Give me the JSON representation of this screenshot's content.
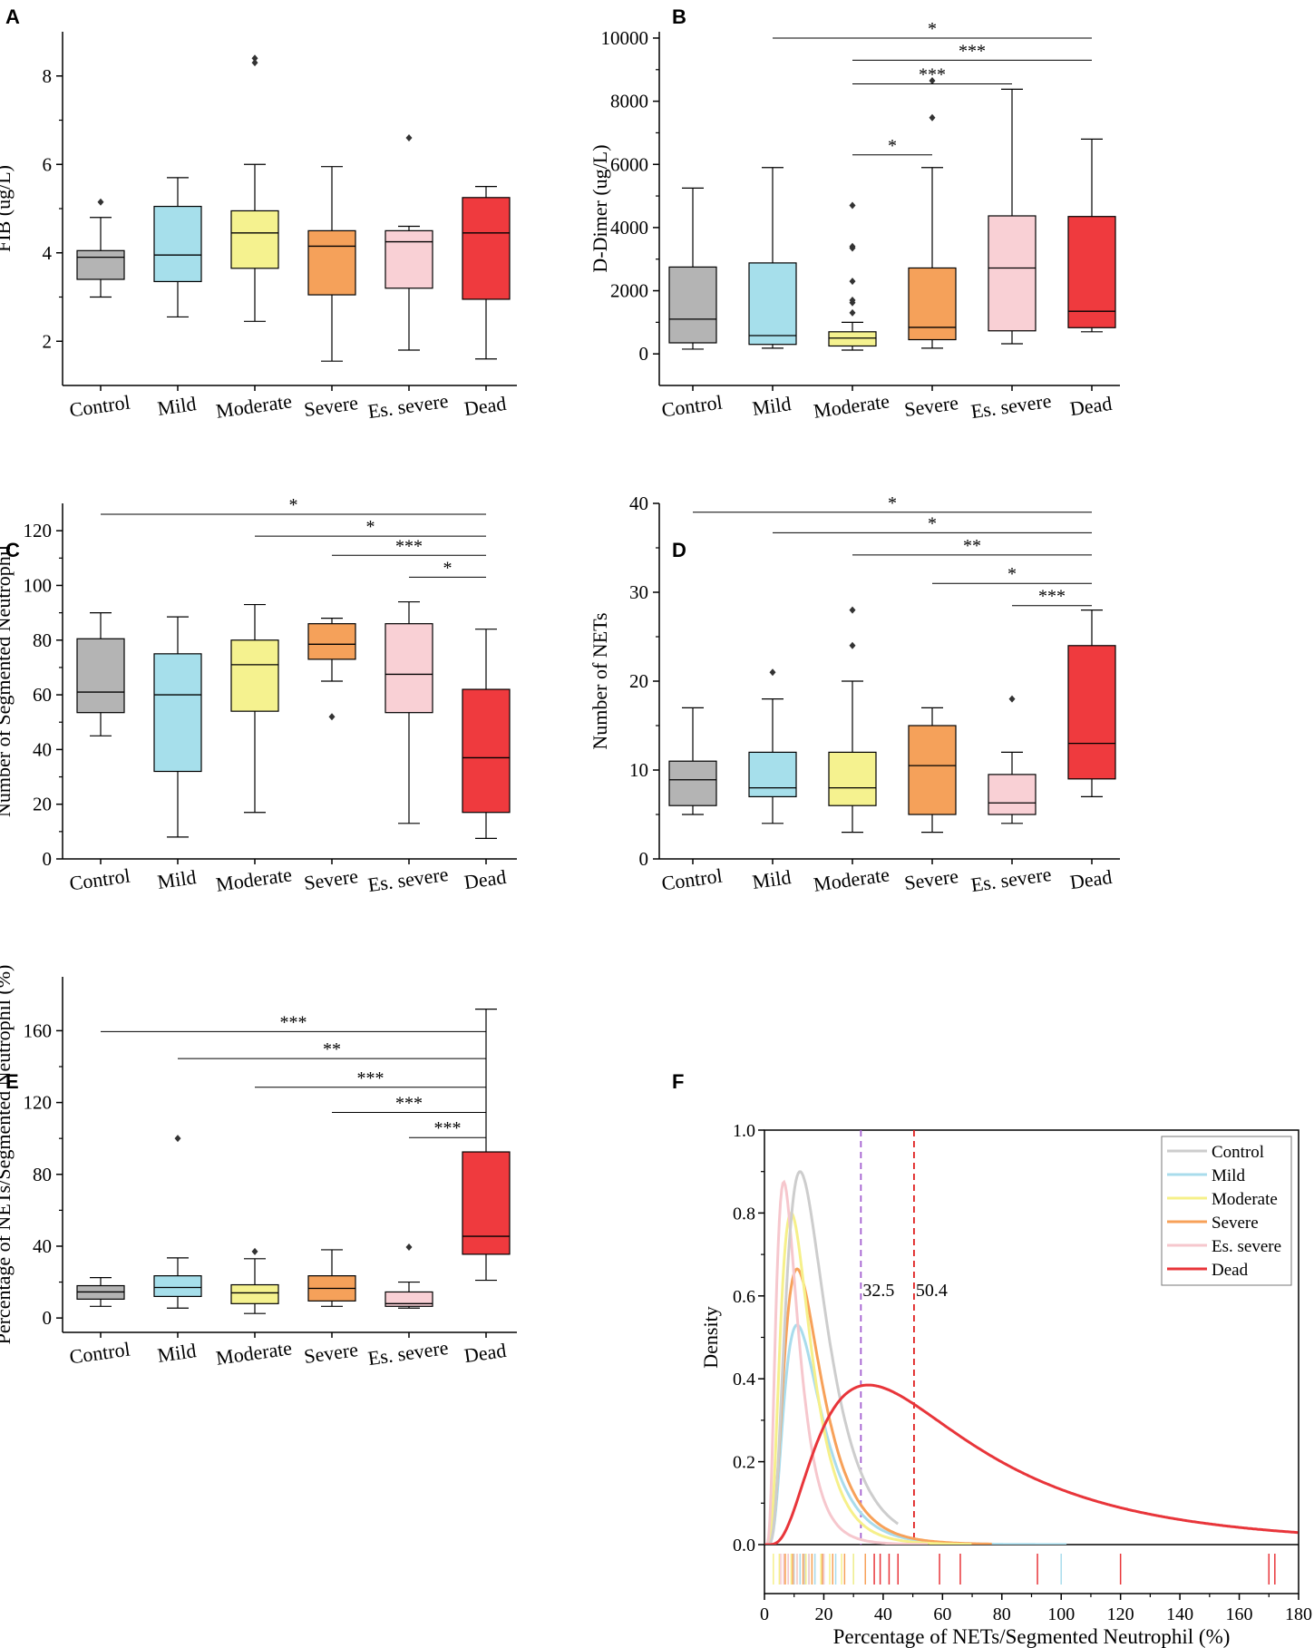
{
  "chart_data": [
    {
      "panel": "A",
      "type": "box",
      "ylabel": "FIB (ug/L)",
      "ylim": [
        1,
        9
      ],
      "yticks": [
        2,
        4,
        6,
        8
      ],
      "categories": [
        "Control",
        "Mild",
        "Moderate",
        "Severe",
        "Es. severe",
        "Dead"
      ],
      "boxes": [
        {
          "color": "#b4b4b4",
          "min": 3.0,
          "q1": 3.4,
          "median": 3.9,
          "q3": 4.05,
          "max": 4.8,
          "outliers": [
            5.15
          ]
        },
        {
          "color": "#a6dfeb",
          "min": 2.55,
          "q1": 3.35,
          "median": 3.95,
          "q3": 5.05,
          "max": 5.7,
          "outliers": []
        },
        {
          "color": "#f5f28f",
          "min": 2.45,
          "q1": 3.65,
          "median": 4.45,
          "q3": 4.95,
          "max": 6.0,
          "outliers": [
            8.3,
            8.4
          ]
        },
        {
          "color": "#f5a15a",
          "min": 1.55,
          "q1": 3.05,
          "median": 4.15,
          "q3": 4.5,
          "max": 5.95,
          "outliers": []
        },
        {
          "color": "#f9d0d5",
          "min": 1.8,
          "q1": 3.2,
          "median": 4.25,
          "q3": 4.5,
          "max": 4.6,
          "outliers": [
            6.6
          ]
        },
        {
          "color": "#ef3a3e",
          "min": 1.6,
          "q1": 2.95,
          "median": 4.45,
          "q3": 5.25,
          "max": 5.5,
          "outliers": []
        }
      ],
      "significance": []
    },
    {
      "panel": "B",
      "type": "box",
      "ylabel": "D-Dimer (ug/L)",
      "ylim": [
        -1000,
        10200
      ],
      "yticks": [
        0,
        2000,
        4000,
        6000,
        8000,
        10000
      ],
      "categories": [
        "Control",
        "Mild",
        "Moderate",
        "Severe",
        "Es. severe",
        "Dead"
      ],
      "boxes": [
        {
          "color": "#b4b4b4",
          "min": 150,
          "q1": 350,
          "median": 1100,
          "q3": 2750,
          "max": 5250,
          "outliers": []
        },
        {
          "color": "#a6dfeb",
          "min": 180,
          "q1": 300,
          "median": 580,
          "q3": 2880,
          "max": 5900,
          "outliers": []
        },
        {
          "color": "#f5f28f",
          "min": 120,
          "q1": 250,
          "median": 500,
          "q3": 700,
          "max": 1000,
          "outliers": [
            1300,
            1620,
            1700,
            2300,
            3350,
            3400,
            4700
          ]
        },
        {
          "color": "#f5a15a",
          "min": 180,
          "q1": 450,
          "median": 840,
          "q3": 2720,
          "max": 5900,
          "outliers": [
            7480,
            8650
          ]
        },
        {
          "color": "#f9d0d5",
          "min": 320,
          "q1": 730,
          "median": 2720,
          "q3": 4370,
          "max": 8380,
          "outliers": []
        },
        {
          "color": "#ef3a3e",
          "min": 700,
          "q1": 830,
          "median": 1350,
          "q3": 4350,
          "max": 6800,
          "outliers": []
        }
      ],
      "significance": [
        {
          "from": 1,
          "to": 5,
          "label": "*",
          "y": 10000
        },
        {
          "from": 2,
          "to": 5,
          "label": "***",
          "y": 9300
        },
        {
          "from": 2,
          "to": 4,
          "label": "***",
          "y": 8550
        },
        {
          "from": 2,
          "to": 3,
          "label": "*",
          "y": 6300
        }
      ]
    },
    {
      "panel": "C",
      "type": "box",
      "ylabel": "Number of Segmented Neutrophil",
      "ylim": [
        0,
        130
      ],
      "yticks": [
        0,
        20,
        40,
        60,
        80,
        100,
        120
      ],
      "categories": [
        "Control",
        "Mild",
        "Moderate",
        "Severe",
        "Es. severe",
        "Dead"
      ],
      "boxes": [
        {
          "color": "#b4b4b4",
          "min": 45,
          "q1": 53.5,
          "median": 61,
          "q3": 80.5,
          "max": 90,
          "outliers": []
        },
        {
          "color": "#a6dfeb",
          "min": 8,
          "q1": 32,
          "median": 60,
          "q3": 75,
          "max": 88.5,
          "outliers": []
        },
        {
          "color": "#f5f28f",
          "min": 17,
          "q1": 54,
          "median": 71,
          "q3": 80,
          "max": 93,
          "outliers": []
        },
        {
          "color": "#f5a15a",
          "min": 65,
          "q1": 73,
          "median": 78.5,
          "q3": 86,
          "max": 88,
          "outliers": [
            52
          ]
        },
        {
          "color": "#f9d0d5",
          "min": 13,
          "q1": 53.5,
          "median": 67.5,
          "q3": 86,
          "max": 94,
          "outliers": []
        },
        {
          "color": "#ef3a3e",
          "min": 7.5,
          "q1": 17,
          "median": 37,
          "q3": 62,
          "max": 84,
          "outliers": []
        }
      ],
      "significance": [
        {
          "from": 0,
          "to": 5,
          "label": "*",
          "y": 126
        },
        {
          "from": 2,
          "to": 5,
          "label": "*",
          "y": 118
        },
        {
          "from": 3,
          "to": 5,
          "label": "***",
          "y": 111
        },
        {
          "from": 4,
          "to": 5,
          "label": "*",
          "y": 103
        }
      ]
    },
    {
      "panel": "D",
      "type": "box",
      "ylabel": "Number of NETs",
      "ylim": [
        0,
        40
      ],
      "yticks": [
        0,
        10,
        20,
        30,
        40
      ],
      "categories": [
        "Control",
        "Mild",
        "Moderate",
        "Severe",
        "Es. severe",
        "Dead"
      ],
      "boxes": [
        {
          "color": "#b4b4b4",
          "min": 5,
          "q1": 6,
          "median": 8.9,
          "q3": 11,
          "max": 17,
          "outliers": []
        },
        {
          "color": "#a6dfeb",
          "min": 4,
          "q1": 7,
          "median": 8,
          "q3": 12,
          "max": 18,
          "outliers": [
            21
          ]
        },
        {
          "color": "#f5f28f",
          "min": 3,
          "q1": 6,
          "median": 8,
          "q3": 12,
          "max": 20,
          "outliers": [
            24,
            28
          ]
        },
        {
          "color": "#f5a15a",
          "min": 3,
          "q1": 5,
          "median": 10.5,
          "q3": 15,
          "max": 17,
          "outliers": []
        },
        {
          "color": "#f9d0d5",
          "min": 4,
          "q1": 5,
          "median": 6.3,
          "q3": 9.5,
          "max": 12,
          "outliers": [
            18
          ]
        },
        {
          "color": "#ef3a3e",
          "min": 7,
          "q1": 9,
          "median": 13,
          "q3": 24,
          "max": 28,
          "outliers": []
        }
      ],
      "significance": [
        {
          "from": 0,
          "to": 5,
          "label": "*",
          "y": 39
        },
        {
          "from": 1,
          "to": 5,
          "label": "*",
          "y": 36.7
        },
        {
          "from": 2,
          "to": 5,
          "label": "**",
          "y": 34.2
        },
        {
          "from": 3,
          "to": 5,
          "label": "*",
          "y": 31
        },
        {
          "from": 4,
          "to": 5,
          "label": "***",
          "y": 28.5
        }
      ]
    },
    {
      "panel": "E",
      "type": "box",
      "ylabel": "Percentage of NETs/Segmented Neutrophil (%)",
      "ylim": [
        -8,
        190
      ],
      "yticks": [
        0,
        40,
        80,
        120,
        160
      ],
      "categories": [
        "Control",
        "Mild",
        "Moderate",
        "Severe",
        "Es. severe",
        "Dead"
      ],
      "boxes": [
        {
          "color": "#b4b4b4",
          "min": 6.5,
          "q1": 10.5,
          "median": 14.5,
          "q3": 18,
          "max": 22.5,
          "outliers": []
        },
        {
          "color": "#a6dfeb",
          "min": 5.5,
          "q1": 12,
          "median": 17,
          "q3": 23.5,
          "max": 33.5,
          "outliers": [
            100
          ]
        },
        {
          "color": "#f5f28f",
          "min": 2.5,
          "q1": 8,
          "median": 14,
          "q3": 18.5,
          "max": 33,
          "outliers": [
            37
          ]
        },
        {
          "color": "#f5a15a",
          "min": 6.5,
          "q1": 9.5,
          "median": 16.5,
          "q3": 23.5,
          "max": 38,
          "outliers": []
        },
        {
          "color": "#f9d0d5",
          "min": 5.5,
          "q1": 6.5,
          "median": 8,
          "q3": 14.5,
          "max": 20,
          "outliers": [
            39.5
          ]
        },
        {
          "color": "#ef3a3e",
          "min": 21,
          "q1": 35.5,
          "median": 45.5,
          "q3": 92.5,
          "max": 172,
          "outliers": []
        }
      ],
      "significance": [
        {
          "from": 0,
          "to": 5,
          "label": "***",
          "y": 159.5
        },
        {
          "from": 1,
          "to": 5,
          "label": "**",
          "y": 144.5
        },
        {
          "from": 2,
          "to": 5,
          "label": "***",
          "y": 128.5
        },
        {
          "from": 3,
          "to": 5,
          "label": "***",
          "y": 114.5
        },
        {
          "from": 4,
          "to": 5,
          "label": "***",
          "y": 100.5
        }
      ]
    },
    {
      "panel": "F",
      "type": "density",
      "xlabel": "Percentage of NETs/Segmented Neutrophil (%)",
      "ylabel": "Density",
      "xlim": [
        0,
        180
      ],
      "ylim": [
        0,
        1.0
      ],
      "xticks": [
        0,
        20,
        40,
        60,
        80,
        100,
        120,
        140,
        160,
        180
      ],
      "yticks": [
        0.0,
        0.2,
        0.4,
        0.6,
        0.8,
        1.0
      ],
      "series": [
        {
          "name": "Control",
          "color": "#cdcdcd",
          "peak_x": 12,
          "peak_y": 0.9,
          "extent": 45
        },
        {
          "name": "Mild",
          "color": "#a9dcec",
          "peak_x": 11,
          "peak_y": 0.53,
          "extent": 102
        },
        {
          "name": "Moderate",
          "color": "#f6f08a",
          "peak_x": 9,
          "peak_y": 0.8,
          "extent": 70
        },
        {
          "name": "Severe",
          "color": "#f7a159",
          "peak_x": 11,
          "peak_y": 0.665,
          "extent": 77
        },
        {
          "name": "Es. severe",
          "color": "#f6c7cd",
          "peak_x": 6.5,
          "peak_y": 0.875,
          "extent": 55
        },
        {
          "name": "Dead",
          "color": "#e8353a",
          "peak_x": 35,
          "peak_y": 0.385,
          "extent": 180
        }
      ],
      "thresholds": [
        {
          "value": 32.5,
          "label": "32.5",
          "color": "#a45fd0"
        },
        {
          "value": 50.4,
          "label": "50.4",
          "color": "#e02020"
        }
      ],
      "rug": {
        "Control": [
          8,
          10,
          12,
          13.5,
          15,
          17
        ],
        "Mild": [
          12,
          15,
          17,
          20,
          24,
          30,
          100
        ],
        "Moderate": [
          3,
          5,
          7,
          9,
          11,
          14,
          16,
          19,
          22,
          26,
          30
        ],
        "Severe": [
          7,
          9.5,
          13,
          16,
          19.5,
          23,
          27,
          34
        ],
        "Es. severe": [
          5.5,
          6.5,
          8,
          11,
          15,
          20
        ],
        "Dead": [
          37,
          39,
          42,
          45,
          59,
          66,
          92,
          120,
          170,
          172
        ]
      }
    }
  ]
}
